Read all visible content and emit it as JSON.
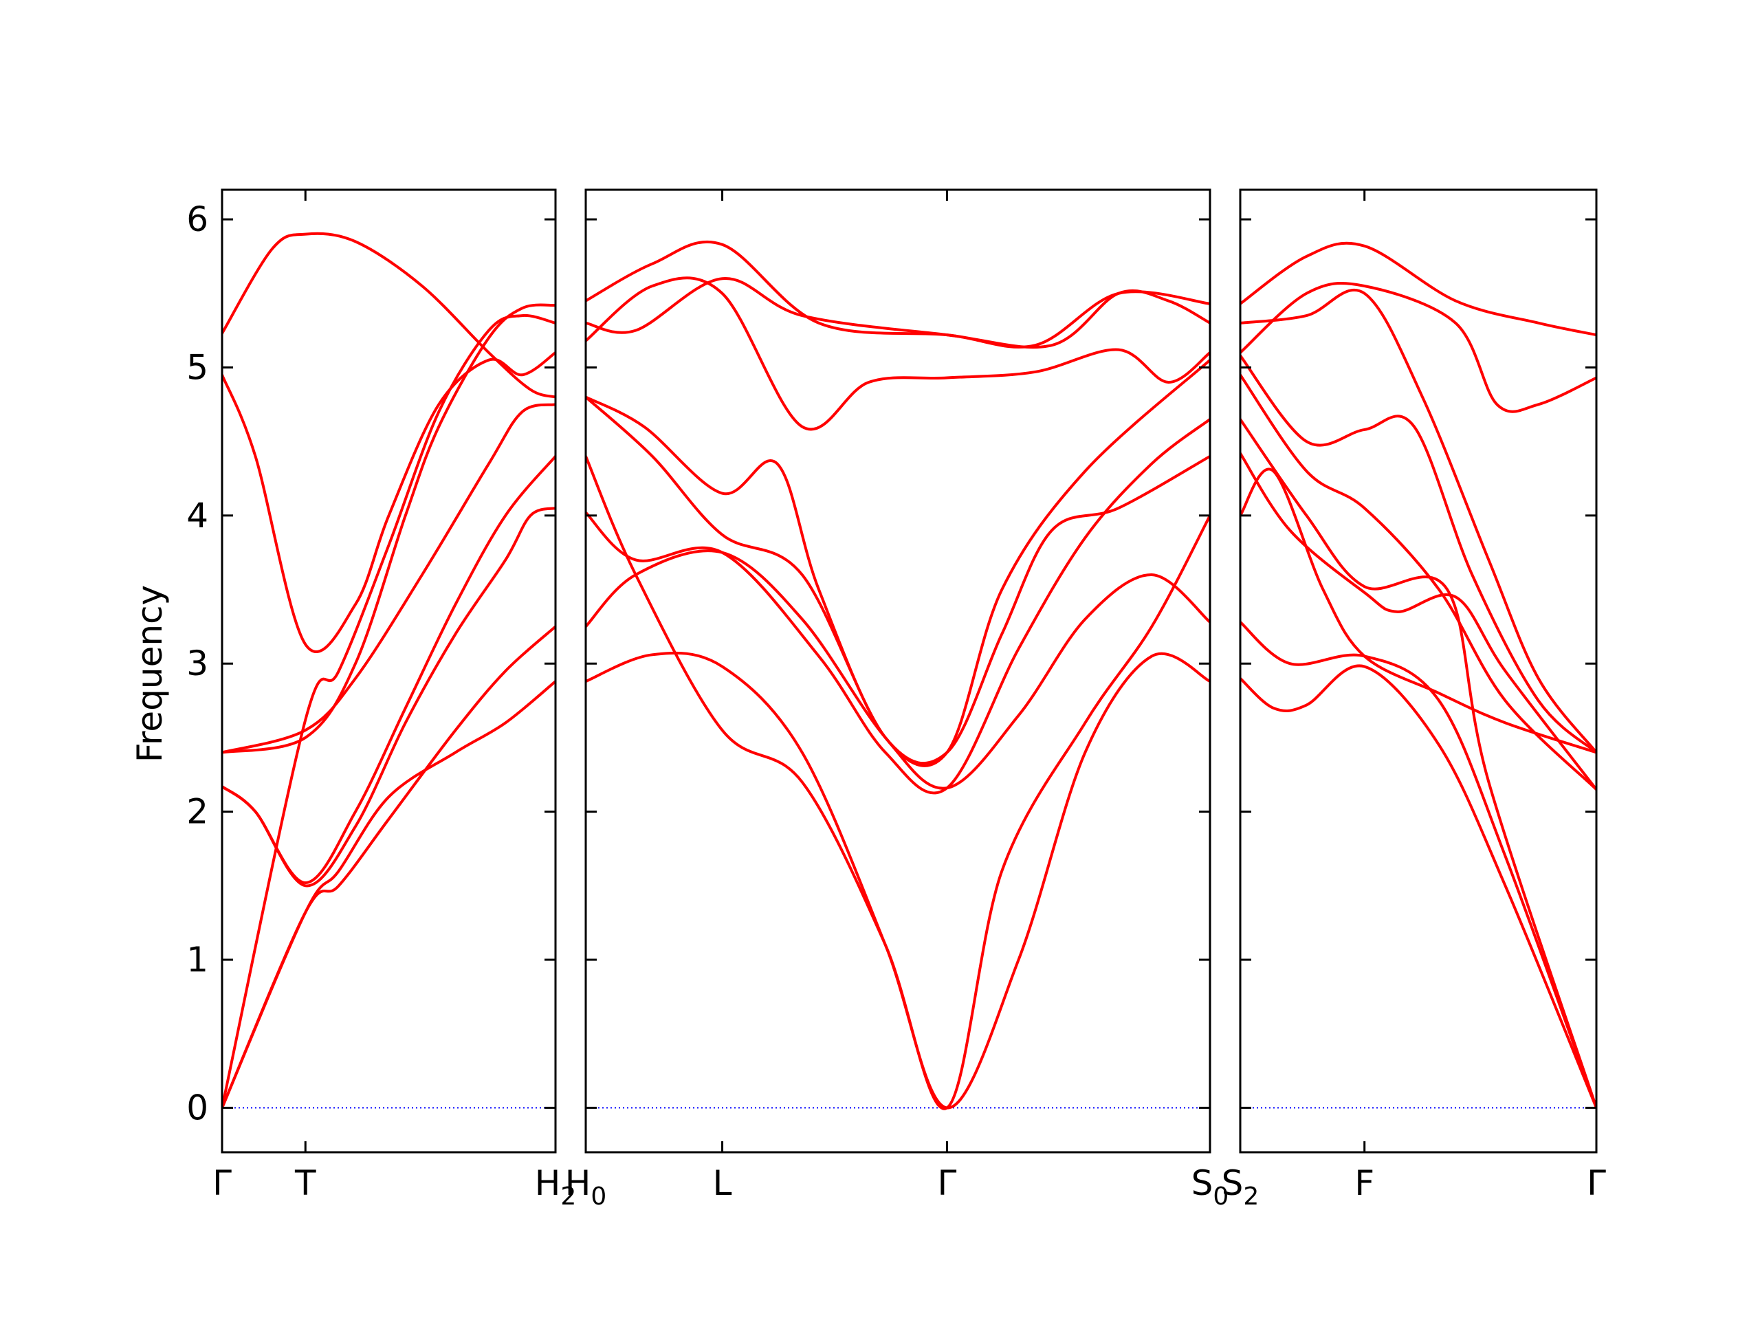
{
  "chart_data": {
    "type": "line",
    "title": "",
    "ylabel": "Frequency",
    "xlabel": "",
    "ylim": [
      -0.3,
      6.2
    ],
    "yticks": [
      0,
      1,
      2,
      3,
      4,
      5,
      6
    ],
    "grid": false,
    "series_color": "#ff0000",
    "zero_line_color": "#0000ff",
    "panels": [
      {
        "name": "Γ-T-H₂",
        "x_range": [
          0,
          2
        ],
        "ticks": [
          {
            "x": 0,
            "label": "Γ"
          },
          {
            "x": 0.5,
            "label": "T"
          },
          {
            "x": 2,
            "label": "H",
            "sub": "2"
          }
        ],
        "bands": [
          [
            [
              0,
              0
            ],
            [
              0.5,
              1.32
            ],
            [
              0.7,
              1.6
            ],
            [
              1.0,
              2.1
            ],
            [
              1.4,
              2.4
            ],
            [
              1.7,
              2.6
            ],
            [
              2,
              2.88
            ]
          ],
          [
            [
              0,
              0
            ],
            [
              0.5,
              1.32
            ],
            [
              0.7,
              1.5
            ],
            [
              1.0,
              1.95
            ],
            [
              1.4,
              2.55
            ],
            [
              1.7,
              2.95
            ],
            [
              2,
              3.25
            ]
          ],
          [
            [
              0,
              0
            ],
            [
              0.5,
              2.62
            ],
            [
              0.7,
              2.95
            ],
            [
              1.0,
              3.8
            ],
            [
              1.3,
              4.7
            ],
            [
              1.6,
              5.25
            ],
            [
              1.8,
              5.35
            ],
            [
              2,
              5.3
            ]
          ],
          [
            [
              0,
              2.17
            ],
            [
              0.2,
              2.0
            ],
            [
              0.5,
              1.5
            ],
            [
              0.8,
              1.9
            ],
            [
              1.1,
              2.6
            ],
            [
              1.4,
              3.2
            ],
            [
              1.7,
              3.7
            ],
            [
              1.85,
              4.0
            ],
            [
              2,
              4.05
            ]
          ],
          [
            [
              0,
              2.17
            ],
            [
              0.2,
              2.0
            ],
            [
              0.5,
              1.52
            ],
            [
              0.8,
              2.0
            ],
            [
              1.1,
              2.7
            ],
            [
              1.4,
              3.4
            ],
            [
              1.7,
              4.0
            ],
            [
              2,
              4.4
            ]
          ],
          [
            [
              0,
              2.4
            ],
            [
              0.5,
              2.55
            ],
            [
              0.8,
              2.9
            ],
            [
              1.2,
              3.6
            ],
            [
              1.6,
              4.35
            ],
            [
              1.8,
              4.7
            ],
            [
              2,
              4.75
            ]
          ],
          [
            [
              0,
              2.4
            ],
            [
              0.5,
              2.5
            ],
            [
              0.8,
              3.0
            ],
            [
              1.1,
              4.0
            ],
            [
              1.3,
              4.6
            ],
            [
              1.6,
              5.2
            ],
            [
              1.8,
              5.4
            ],
            [
              2,
              5.42
            ]
          ],
          [
            [
              0,
              4.95
            ],
            [
              0.2,
              4.4
            ],
            [
              0.5,
              3.13
            ],
            [
              0.8,
              3.4
            ],
            [
              1.0,
              4.0
            ],
            [
              1.3,
              4.75
            ],
            [
              1.6,
              5.05
            ],
            [
              1.8,
              4.95
            ],
            [
              2,
              5.1
            ]
          ],
          [
            [
              0,
              5.23
            ],
            [
              0.3,
              5.8
            ],
            [
              0.5,
              5.9
            ],
            [
              0.8,
              5.85
            ],
            [
              1.2,
              5.55
            ],
            [
              1.6,
              5.1
            ],
            [
              1.85,
              4.85
            ],
            [
              2,
              4.8
            ]
          ]
        ]
      },
      {
        "name": "H₀-L-Γ-S₀",
        "x_range": [
          0,
          3.75
        ],
        "ticks": [
          {
            "x": 0,
            "label": "H",
            "sub": "0"
          },
          {
            "x": 0.82,
            "label": "L"
          },
          {
            "x": 2.17,
            "label": "Γ"
          },
          {
            "x": 3.75,
            "label": "S",
            "sub": "0"
          }
        ],
        "bands": [
          [
            [
              0,
              2.88
            ],
            [
              0.4,
              3.06
            ],
            [
              0.82,
              2.98
            ],
            [
              1.3,
              2.4
            ],
            [
              1.8,
              1.1
            ],
            [
              2.17,
              0
            ],
            [
              2.6,
              1.0
            ],
            [
              3.0,
              2.4
            ],
            [
              3.4,
              3.05
            ],
            [
              3.75,
              2.88
            ]
          ],
          [
            [
              0,
              3.25
            ],
            [
              0.3,
              3.6
            ],
            [
              0.82,
              3.75
            ],
            [
              1.3,
              3.3
            ],
            [
              1.8,
              2.5
            ],
            [
              2.17,
              2.16
            ],
            [
              2.6,
              2.65
            ],
            [
              3.0,
              3.3
            ],
            [
              3.4,
              3.6
            ],
            [
              3.75,
              3.28
            ]
          ],
          [
            [
              0,
              4.02
            ],
            [
              0.3,
              3.7
            ],
            [
              0.82,
              3.75
            ],
            [
              1.4,
              3.05
            ],
            [
              1.8,
              2.4
            ],
            [
              2.17,
              2.16
            ],
            [
              2.6,
              3.1
            ],
            [
              3.0,
              3.85
            ],
            [
              3.4,
              4.35
            ],
            [
              3.75,
              4.65
            ]
          ],
          [
            [
              0,
              4.8
            ],
            [
              0.4,
              4.4
            ],
            [
              0.82,
              3.87
            ],
            [
              1.3,
              3.6
            ],
            [
              1.8,
              2.5
            ],
            [
              2.17,
              2.4
            ],
            [
              2.5,
              3.2
            ],
            [
              2.8,
              3.9
            ],
            [
              3.2,
              4.05
            ],
            [
              3.75,
              4.4
            ]
          ],
          [
            [
              0,
              4.8
            ],
            [
              0.35,
              4.6
            ],
            [
              0.82,
              4.15
            ],
            [
              1.15,
              4.35
            ],
            [
              1.4,
              3.5
            ],
            [
              1.8,
              2.5
            ],
            [
              2.17,
              2.4
            ],
            [
              2.5,
              3.5
            ],
            [
              3.0,
              4.3
            ],
            [
              3.75,
              5.05
            ]
          ],
          [
            [
              0,
              4.4
            ],
            [
              0.3,
              3.6
            ],
            [
              0.82,
              2.55
            ],
            [
              1.3,
              2.2
            ],
            [
              1.8,
              1.1
            ],
            [
              2.17,
              0
            ],
            [
              2.5,
              1.6
            ],
            [
              3.0,
              2.6
            ],
            [
              3.4,
              3.25
            ],
            [
              3.75,
              4.0
            ]
          ],
          [
            [
              0,
              5.18
            ],
            [
              0.4,
              5.55
            ],
            [
              0.82,
              5.5
            ],
            [
              1.3,
              4.6
            ],
            [
              1.7,
              4.9
            ],
            [
              2.17,
              4.93
            ],
            [
              2.7,
              4.97
            ],
            [
              3.2,
              5.12
            ],
            [
              3.5,
              4.9
            ],
            [
              3.75,
              5.1
            ]
          ],
          [
            [
              0,
              5.3
            ],
            [
              0.3,
              5.25
            ],
            [
              0.82,
              5.6
            ],
            [
              1.3,
              5.35
            ],
            [
              2.17,
              5.22
            ],
            [
              2.8,
              5.15
            ],
            [
              3.2,
              5.5
            ],
            [
              3.5,
              5.45
            ],
            [
              3.75,
              5.3
            ]
          ],
          [
            [
              0,
              5.45
            ],
            [
              0.4,
              5.7
            ],
            [
              0.82,
              5.83
            ],
            [
              1.4,
              5.3
            ],
            [
              2.17,
              5.22
            ],
            [
              2.7,
              5.15
            ],
            [
              3.2,
              5.5
            ],
            [
              3.75,
              5.43
            ]
          ]
        ]
      },
      {
        "name": "S₂-F-Γ",
        "x_range": [
          0,
          2.15
        ],
        "ticks": [
          {
            "x": 0,
            "label": "S",
            "sub": "2"
          },
          {
            "x": 0.75,
            "label": "F"
          },
          {
            "x": 2.15,
            "label": "Γ"
          }
        ],
        "bands": [
          [
            [
              0,
              2.9
            ],
            [
              0.2,
              2.7
            ],
            [
              0.4,
              2.72
            ],
            [
              0.75,
              2.98
            ],
            [
              1.2,
              2.45
            ],
            [
              1.6,
              1.5
            ],
            [
              2.15,
              0
            ]
          ],
          [
            [
              0,
              3.28
            ],
            [
              0.3,
              3.0
            ],
            [
              0.75,
              3.05
            ],
            [
              1.2,
              2.75
            ],
            [
              1.6,
              1.7
            ],
            [
              2.15,
              0
            ]
          ],
          [
            [
              0,
              4.42
            ],
            [
              0.3,
              3.9
            ],
            [
              0.75,
              3.48
            ],
            [
              0.95,
              3.35
            ],
            [
              1.3,
              3.45
            ],
            [
              1.6,
              2.95
            ],
            [
              2.15,
              2.15
            ]
          ],
          [
            [
              0,
              4.65
            ],
            [
              0.4,
              4.0
            ],
            [
              0.75,
              3.52
            ],
            [
              1.25,
              3.5
            ],
            [
              1.5,
              2.2
            ],
            [
              2.15,
              0
            ]
          ],
          [
            [
              0,
              4.0
            ],
            [
              0.2,
              4.3
            ],
            [
              0.5,
              3.5
            ],
            [
              0.75,
              3.05
            ],
            [
              1.2,
              2.8
            ],
            [
              1.6,
              2.6
            ],
            [
              2.15,
              2.4
            ]
          ],
          [
            [
              0,
              4.95
            ],
            [
              0.4,
              4.3
            ],
            [
              0.75,
              4.05
            ],
            [
              1.2,
              3.5
            ],
            [
              1.6,
              2.75
            ],
            [
              2.15,
              2.15
            ]
          ],
          [
            [
              0,
              5.08
            ],
            [
              0.4,
              4.5
            ],
            [
              0.75,
              4.58
            ],
            [
              1.05,
              4.6
            ],
            [
              1.4,
              3.6
            ],
            [
              1.8,
              2.75
            ],
            [
              2.15,
              2.4
            ]
          ],
          [
            [
              0,
              5.3
            ],
            [
              0.4,
              5.35
            ],
            [
              0.75,
              5.5
            ],
            [
              1.1,
              4.8
            ],
            [
              1.5,
              3.7
            ],
            [
              1.8,
              2.9
            ],
            [
              2.15,
              2.4
            ]
          ],
          [
            [
              0,
              5.1
            ],
            [
              0.4,
              5.5
            ],
            [
              0.75,
              5.55
            ],
            [
              1.3,
              5.3
            ],
            [
              1.55,
              4.75
            ],
            [
              1.8,
              4.75
            ],
            [
              2.15,
              4.93
            ]
          ],
          [
            [
              0,
              5.43
            ],
            [
              0.4,
              5.75
            ],
            [
              0.75,
              5.82
            ],
            [
              1.3,
              5.45
            ],
            [
              1.8,
              5.3
            ],
            [
              2.15,
              5.22
            ]
          ]
        ]
      }
    ]
  }
}
